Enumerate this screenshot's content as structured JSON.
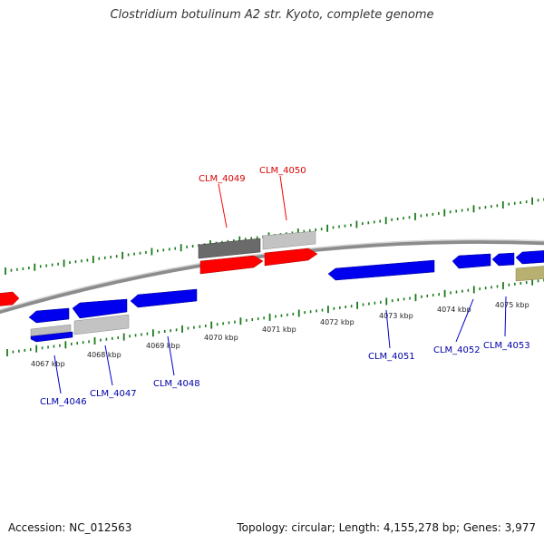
{
  "title": "Clostridium botulinum A2 str. Kyoto, complete genome",
  "footer": {
    "accession": "Accession: NC_012563",
    "summary": "Topology: circular; Length: 4,155,278 bp; Genes: 3,977"
  },
  "colors": {
    "backbone": "#8a8a8a",
    "ticks": "#1a7a1a",
    "forward_gene": "#ff0000",
    "reverse_gene": "#0000ee",
    "pseudo_gene_light": "#bdbdbd",
    "pseudo_gene_dark": "#6a6a6a",
    "other_gene": "#b8b070",
    "forward_label": "#dd0000",
    "reverse_label": "#0000aa"
  },
  "scale_labels": [
    "4067 kbp",
    "4068 kbp",
    "4069 kbp",
    "4070 kbp",
    "4071 kbp",
    "4072 kbp",
    "4073 kbp",
    "4074 kbp",
    "4075 kbp"
  ],
  "gene_labels": {
    "forward": [
      "CLM_4049",
      "CLM_4050"
    ],
    "reverse": [
      "CLM_4046",
      "CLM_4047",
      "CLM_4048",
      "CLM_4051",
      "CLM_4052",
      "CLM_4053"
    ]
  }
}
